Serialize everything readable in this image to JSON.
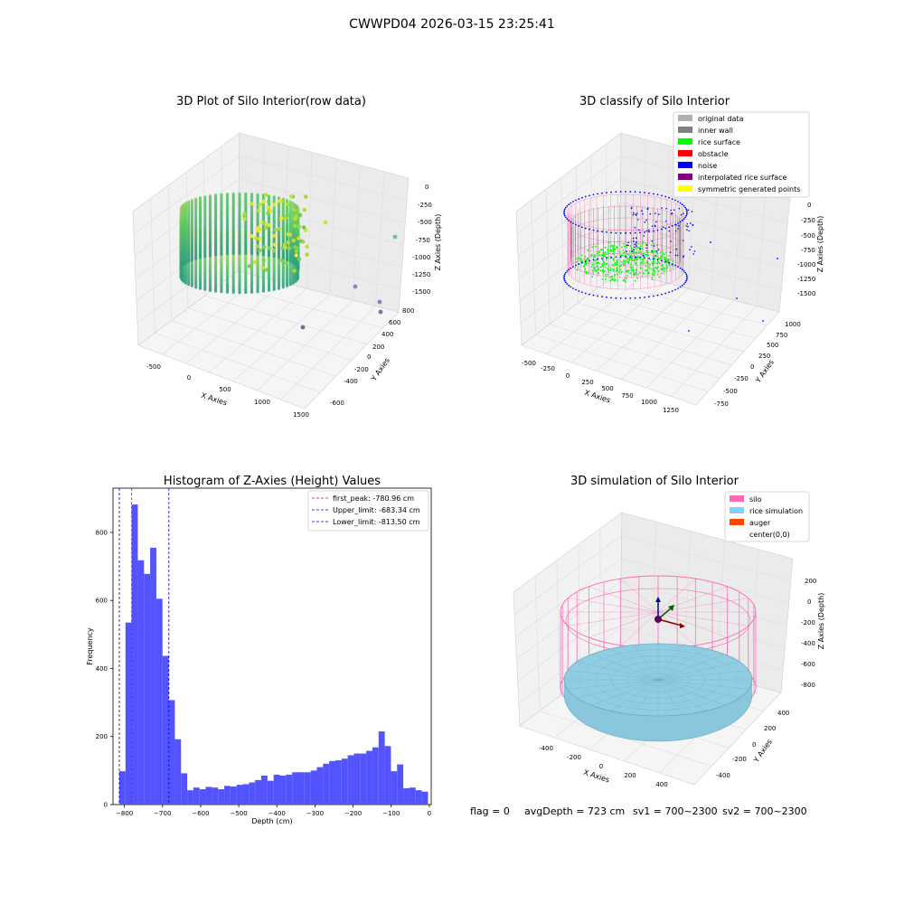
{
  "suptitle": "CWWPD04 2026-03-15 23:25:41",
  "colors": {
    "hist_bar": "#4d4dff",
    "peak_line": "#ff0000",
    "limit_line": "#0000cc",
    "silo": "#ff69b4",
    "rice": "#87cefa",
    "auger": "#ff4500",
    "noise": "#0000ff",
    "rice_surface": "#00ff00",
    "inner_wall": "#808080",
    "original": "#b0b0b0",
    "interpolated": "#800080",
    "symmetric": "#ffff00"
  },
  "status": {
    "flag": "flag = 0",
    "avg": "avgDepth = 723 cm",
    "sv1": "sv1 = 700~2300",
    "sv2": "sv2 = 700~2300"
  },
  "panel_raw": {
    "title": "3D Plot of Silo Interior(row data)",
    "xlabel": "X Axies",
    "ylabel": "Y Axies",
    "zlabel": "Z Axies (Depth)",
    "xticks": [
      "-500",
      "0",
      "500",
      "1000",
      "1500"
    ],
    "yticks": [
      "-600",
      "-400",
      "-200",
      "0",
      "200",
      "400",
      "600",
      "800"
    ],
    "zticks": [
      "0",
      "-250",
      "-500",
      "-750",
      "-1000",
      "-1250",
      "-1500"
    ]
  },
  "panel_classify": {
    "title": "3D classify of Silo Interior",
    "xlabel": "X Axies",
    "ylabel": "Y Axies",
    "zlabel": "Z Axies (Depth)",
    "xticks": [
      "-500",
      "-250",
      "0",
      "250",
      "500",
      "750",
      "1000",
      "1250"
    ],
    "yticks": [
      "-750",
      "-500",
      "-250",
      "0",
      "250",
      "500",
      "750",
      "1000"
    ],
    "zticks": [
      "0",
      "-250",
      "-500",
      "-750",
      "-1000",
      "-1250",
      "-1500"
    ],
    "legend": [
      {
        "label": "original data",
        "color": "#b0b0b0"
      },
      {
        "label": "inner wall",
        "color": "#808080"
      },
      {
        "label": "rice surface",
        "color": "#00ff00"
      },
      {
        "label": "obstacle",
        "color": "#ff0000"
      },
      {
        "label": "noise",
        "color": "#0000ff"
      },
      {
        "label": "interpolated rice surface",
        "color": "#800080"
      },
      {
        "label": "symmetric generated points",
        "color": "#ffff00"
      }
    ]
  },
  "panel_sim": {
    "title": "3D simulation of Silo Interior",
    "xlabel": "X Axies",
    "ylabel": "Y Axies",
    "zlabel": "Z Axies (Depth)",
    "xticks": [
      "-400",
      "-200",
      "0",
      "200",
      "400"
    ],
    "yticks": [
      "-400",
      "-200",
      "0",
      "200",
      "400"
    ],
    "zticks": [
      "200",
      "0",
      "-200",
      "-400",
      "-600",
      "-800"
    ],
    "legend": [
      {
        "label": "silo",
        "color": "#ff69b4"
      },
      {
        "label": "rice simulation",
        "color": "#87cefa"
      },
      {
        "label": "auger",
        "color": "#ff4500"
      },
      {
        "label": "center(0,0)",
        "color": ""
      }
    ]
  },
  "chart_data": [
    {
      "type": "bar",
      "title": "Histogram of Z-Axies (Height) Values",
      "xlabel": "Depth (cm)",
      "ylabel": "Frequency",
      "xlim": [
        -830,
        5
      ],
      "ylim": [
        0,
        930
      ],
      "xticks": [
        -800,
        -700,
        -600,
        -500,
        -400,
        -300,
        -200,
        -100,
        0
      ],
      "yticks": [
        0,
        200,
        400,
        600,
        800
      ],
      "bin_start": -813.5,
      "bin_width": 16.2,
      "values": [
        98,
        535,
        882,
        718,
        678,
        755,
        605,
        437,
        307,
        192,
        92,
        42,
        50,
        45,
        52,
        50,
        45,
        55,
        53,
        58,
        60,
        65,
        72,
        85,
        70,
        88,
        85,
        88,
        95,
        95,
        95,
        100,
        110,
        120,
        128,
        130,
        135,
        145,
        150,
        150,
        158,
        168,
        215,
        172,
        98,
        118,
        48,
        50,
        42,
        38
      ],
      "vlines": [
        {
          "name": "first_peak",
          "label": "first_peak: -780.96 cm",
          "x": -780.96,
          "color": "#ff0000"
        },
        {
          "name": "upper_limit",
          "label": "Upper_limit: -683.34 cm",
          "x": -683.34,
          "color": "#0000cc"
        },
        {
          "name": "lower_limit",
          "label": "Lower_limit: -813.50 cm",
          "x": -813.5,
          "color": "#0000cc"
        }
      ],
      "legend_position": "top-right"
    }
  ]
}
